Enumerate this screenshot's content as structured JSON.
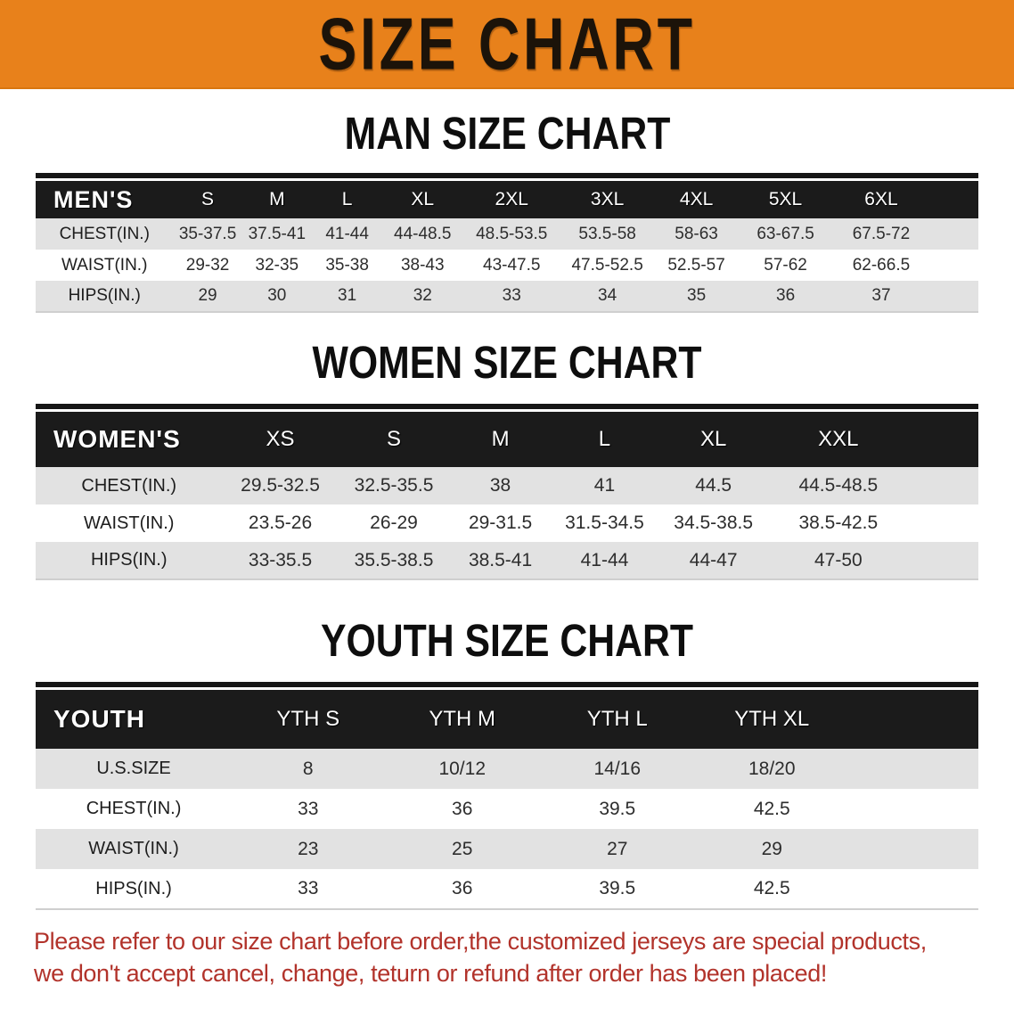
{
  "banner": {
    "title": "SIZE CHART",
    "background_color": "#E8811B",
    "text_color": "#1c1309"
  },
  "colors": {
    "header_band": "#1b1b1b",
    "row_alt_gray": "#E2E2E2",
    "disclaimer_red": "#B2332B"
  },
  "sections": [
    {
      "id": "men",
      "heading": "MAN SIZE CHART",
      "table": {
        "label": "MEN'S",
        "columns": [
          "S",
          "M",
          "L",
          "XL",
          "2XL",
          "3XL",
          "4XL",
          "5XL",
          "6XL"
        ],
        "rows": [
          {
            "label": "CHEST(IN.)",
            "values": [
              "35-37.5",
              "37.5-41",
              "41-44",
              "44-48.5",
              "48.5-53.5",
              "53.5-58",
              "58-63",
              "63-67.5",
              "67.5-72"
            ]
          },
          {
            "label": "WAIST(IN.)",
            "values": [
              "29-32",
              "32-35",
              "35-38",
              "38-43",
              "43-47.5",
              "47.5-52.5",
              "52.5-57",
              "57-62",
              "62-66.5"
            ]
          },
          {
            "label": "HIPS(IN.)",
            "values": [
              "29",
              "30",
              "31",
              "32",
              "33",
              "34",
              "35",
              "36",
              "37"
            ]
          }
        ]
      }
    },
    {
      "id": "women",
      "heading": "WOMEN SIZE CHART",
      "table": {
        "label": "WOMEN'S",
        "columns": [
          "XS",
          "S",
          "M",
          "L",
          "XL",
          "XXL"
        ],
        "rows": [
          {
            "label": "CHEST(IN.)",
            "values": [
              "29.5-32.5",
              "32.5-35.5",
              "38",
              "41",
              "44.5",
              "44.5-48.5"
            ]
          },
          {
            "label": "WAIST(IN.)",
            "values": [
              "23.5-26",
              "26-29",
              "29-31.5",
              "31.5-34.5",
              "34.5-38.5",
              "38.5-42.5"
            ]
          },
          {
            "label": "HIPS(IN.)",
            "values": [
              "33-35.5",
              "35.5-38.5",
              "38.5-41",
              "41-44",
              "44-47",
              "47-50"
            ]
          }
        ]
      }
    },
    {
      "id": "youth",
      "heading": "YOUTH SIZE CHART",
      "table": {
        "label": "YOUTH",
        "columns": [
          "YTH S",
          "YTH M",
          "YTH L",
          "YTH XL"
        ],
        "rows": [
          {
            "label": "U.S.SIZE",
            "values": [
              "8",
              "10/12",
              "14/16",
              "18/20"
            ]
          },
          {
            "label": "CHEST(IN.)",
            "values": [
              "33",
              "36",
              "39.5",
              "42.5"
            ]
          },
          {
            "label": "WAIST(IN.)",
            "values": [
              "23",
              "25",
              "27",
              "29"
            ]
          },
          {
            "label": "HIPS(IN.)",
            "values": [
              "33",
              "36",
              "39.5",
              "42.5"
            ]
          }
        ]
      }
    }
  ],
  "disclaimer": {
    "lines": [
      "Please refer to our size chart before order,the customized jerseys are special products,",
      "we don't accept cancel, change, teturn or refund after order has been placed!"
    ]
  }
}
